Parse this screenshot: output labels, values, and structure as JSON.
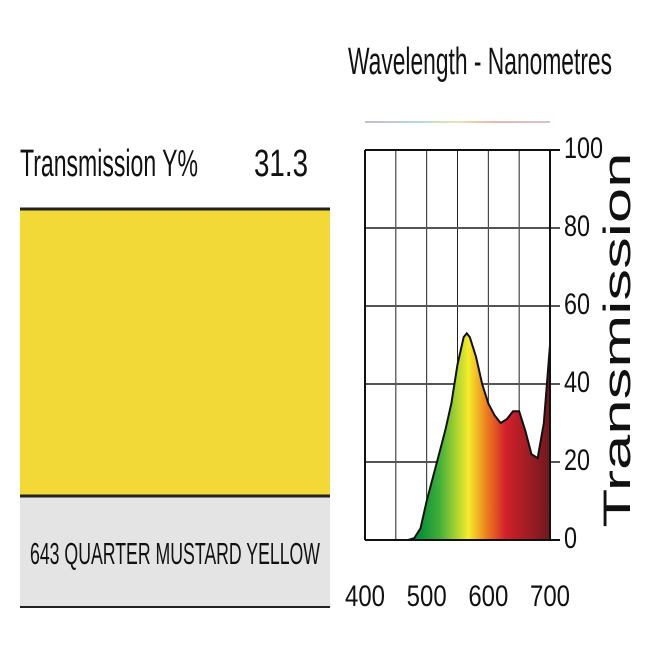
{
  "swatch": {
    "label": "Transmission Y%",
    "value": 31.3,
    "name": "643 QUARTER MUSTARD YELLOW",
    "color": "#f3d938"
  },
  "chart_data": {
    "type": "area",
    "title": "Wavelength - Nanometres",
    "y_label": "Transmission",
    "x": [
      400,
      450,
      470,
      480,
      490,
      500,
      510,
      520,
      530,
      540,
      550,
      560,
      565,
      570,
      580,
      590,
      600,
      610,
      620,
      630,
      640,
      650,
      660,
      670,
      680,
      690,
      700
    ],
    "values": [
      0,
      0,
      0,
      0.5,
      3,
      10,
      16,
      22,
      28,
      35,
      45,
      52,
      53,
      52,
      47,
      40,
      35,
      32,
      30,
      31,
      33,
      33,
      28,
      22,
      21,
      30,
      50
    ],
    "xlim": [
      400,
      700
    ],
    "ylim": [
      0,
      100
    ],
    "xticks": [
      400,
      500,
      600,
      700
    ],
    "xgrid": [
      400,
      450,
      500,
      550,
      600,
      650,
      700
    ],
    "yticks": [
      0,
      20,
      40,
      60,
      80,
      100
    ],
    "grid": true
  }
}
